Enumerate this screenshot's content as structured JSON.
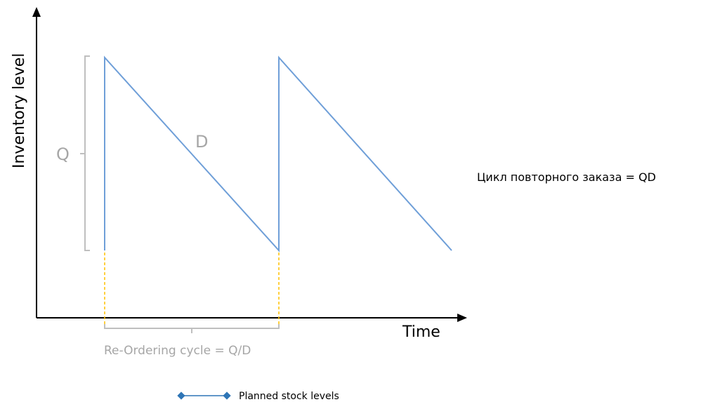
{
  "diagram": {
    "y_axis_label": "Inventory level",
    "x_axis_label": "Time",
    "quantity_label": "Q",
    "demand_label": "D",
    "cycle_label": "Re-Ordering cycle = Q/D",
    "legend_label": "Planned stock levels",
    "series_color": "#6f9fd8",
    "marker_color": "#2e75b6",
    "guide_color": "#ffc000",
    "bracket_color": "#bfbfbf"
  },
  "side_note": "Цикл повторного заказа = QD"
}
